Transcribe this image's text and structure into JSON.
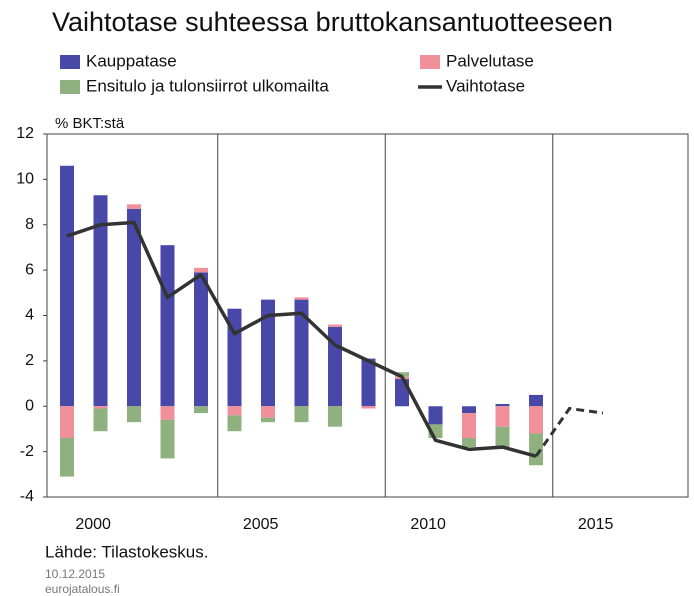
{
  "chart_data": {
    "type": "bar",
    "title": "Vaihtotase suhteessa bruttokansantuotteeseen",
    "y_label": "% BKT:stä",
    "source": "Lähde: Tilastokeskus.",
    "date": "10.12.2015",
    "site": "eurojatalous.fi",
    "categories": [
      "2000",
      null,
      null,
      null,
      null,
      "2005",
      null,
      null,
      null,
      null,
      "2010",
      null,
      null,
      null,
      null,
      "2015",
      null
    ],
    "series": [
      {
        "name": "Kauppatase",
        "type": "bar",
        "color": "#4848a8",
        "values": [
          10.6,
          9.3,
          8.7,
          7.1,
          5.9,
          4.3,
          4.7,
          4.7,
          3.5,
          2.1,
          1.2,
          -0.8,
          -0.3,
          0.1,
          0.5,
          null,
          null
        ]
      },
      {
        "name": "Palvelutase",
        "type": "bar",
        "color": "#f0909a",
        "values": [
          -1.4,
          -0.1,
          0.2,
          -0.6,
          0.2,
          -0.4,
          -0.5,
          0.1,
          0.1,
          -0.1,
          0.1,
          0,
          -1.1,
          -0.9,
          -1.2,
          null,
          null
        ]
      },
      {
        "name": "Ensitulo ja tulonsiirrot ulkomailta",
        "type": "bar",
        "color": "#8fb07f",
        "values": [
          -1.7,
          -1.0,
          -0.7,
          -1.7,
          -0.3,
          -0.7,
          -0.2,
          -0.7,
          -0.9,
          0,
          0.2,
          -0.6,
          -0.4,
          -0.9,
          -1.4,
          null,
          null
        ]
      },
      {
        "name": "Vaihtotase",
        "type": "line",
        "color": "#333333",
        "dash_from": 14,
        "values": [
          7.5,
          8.0,
          8.1,
          4.8,
          5.8,
          3.2,
          4.0,
          4.1,
          2.7,
          2.0,
          1.3,
          -1.5,
          -1.9,
          -1.8,
          -2.2,
          -0.1,
          -0.3
        ]
      }
    ],
    "ylim": [
      -4,
      12
    ],
    "yticks": [
      -4,
      -2,
      0,
      2,
      4,
      6,
      8,
      10,
      12
    ],
    "grid": "x"
  }
}
